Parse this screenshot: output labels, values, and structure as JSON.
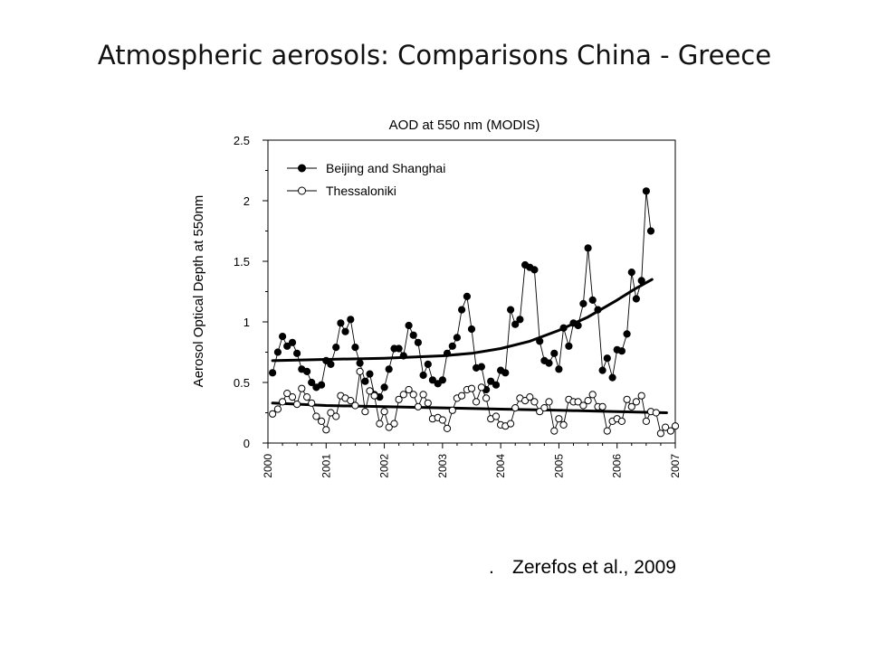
{
  "slide": {
    "title": "Atmospheric aerosols: Comparisons China - Greece",
    "citation_bullet": ".",
    "citation": "Zerefos et al., 2009"
  },
  "chart_data": {
    "type": "line",
    "title": "AOD at 550 nm (MODIS)",
    "xlabel": "",
    "ylabel": "Aerosol Optical Depth at 550nm",
    "xlim": [
      2000,
      2007
    ],
    "ylim": [
      0,
      2.5
    ],
    "x_ticks": [
      "2000",
      "2001",
      "2002",
      "2003",
      "2004",
      "2005",
      "2006",
      "2007"
    ],
    "y_ticks": [
      "0",
      "0.5",
      "1",
      "1.5",
      "2",
      "2.5"
    ],
    "grid": false,
    "legend": "top-left",
    "series": [
      {
        "name": "Beijing and Shanghai",
        "marker": "filled-circle",
        "color": "#000000",
        "x": [
          2000.08,
          2000.17,
          2000.25,
          2000.33,
          2000.42,
          2000.5,
          2000.58,
          2000.67,
          2000.75,
          2000.83,
          2000.92,
          2001.0,
          2001.08,
          2001.17,
          2001.25,
          2001.33,
          2001.42,
          2001.5,
          2001.58,
          2001.67,
          2001.75,
          2001.83,
          2001.92,
          2002.0,
          2002.08,
          2002.17,
          2002.25,
          2002.33,
          2002.42,
          2002.5,
          2002.58,
          2002.67,
          2002.75,
          2002.83,
          2002.92,
          2003.0,
          2003.08,
          2003.17,
          2003.25,
          2003.33,
          2003.42,
          2003.5,
          2003.58,
          2003.67,
          2003.75,
          2003.83,
          2003.92,
          2004.0,
          2004.08,
          2004.17,
          2004.25,
          2004.33,
          2004.42,
          2004.5,
          2004.58,
          2004.67,
          2004.75,
          2004.83,
          2004.92,
          2005.0,
          2005.08,
          2005.17,
          2005.25,
          2005.33,
          2005.42,
          2005.5,
          2005.58,
          2005.67,
          2005.75,
          2005.83,
          2005.92,
          2006.0,
          2006.08,
          2006.17,
          2006.25,
          2006.33,
          2006.42,
          2006.5,
          2006.58
        ],
        "values": [
          0.58,
          0.75,
          0.88,
          0.8,
          0.83,
          0.74,
          0.61,
          0.59,
          0.5,
          0.46,
          0.48,
          0.68,
          0.65,
          0.79,
          0.99,
          0.92,
          1.02,
          0.79,
          0.66,
          0.51,
          0.57,
          0.4,
          0.38,
          0.46,
          0.61,
          0.78,
          0.78,
          0.72,
          0.97,
          0.89,
          0.83,
          0.56,
          0.65,
          0.52,
          0.49,
          0.52,
          0.74,
          0.8,
          0.87,
          1.1,
          1.21,
          0.94,
          0.62,
          0.63,
          0.44,
          0.51,
          0.48,
          0.6,
          0.58,
          1.1,
          0.98,
          1.02,
          1.47,
          1.45,
          1.43,
          0.84,
          0.68,
          0.66,
          0.74,
          0.61,
          0.95,
          0.8,
          0.99,
          0.97,
          1.15,
          1.61,
          1.18,
          1.1,
          0.6,
          0.7,
          0.54,
          0.77,
          0.76,
          0.9,
          1.41,
          1.19,
          1.34,
          2.08,
          1.75
        ],
        "trend": {
          "x": [
            2000.08,
            2001.0,
            2002.0,
            2003.0,
            2003.5,
            2004.0,
            2004.5,
            2005.0,
            2005.5,
            2006.0,
            2006.3,
            2006.6
          ],
          "values": [
            0.68,
            0.69,
            0.7,
            0.72,
            0.74,
            0.78,
            0.84,
            0.93,
            1.04,
            1.18,
            1.27,
            1.35
          ]
        }
      },
      {
        "name": "Thessaloniki",
        "marker": "open-circle",
        "color": "#000000",
        "x": [
          2000.08,
          2000.17,
          2000.25,
          2000.33,
          2000.42,
          2000.5,
          2000.58,
          2000.67,
          2000.75,
          2000.83,
          2000.92,
          2001.0,
          2001.08,
          2001.17,
          2001.25,
          2001.33,
          2001.42,
          2001.5,
          2001.58,
          2001.67,
          2001.75,
          2001.83,
          2001.92,
          2002.0,
          2002.08,
          2002.17,
          2002.25,
          2002.33,
          2002.42,
          2002.5,
          2002.58,
          2002.67,
          2002.75,
          2002.83,
          2002.92,
          2003.0,
          2003.08,
          2003.17,
          2003.25,
          2003.33,
          2003.42,
          2003.5,
          2003.58,
          2003.67,
          2003.75,
          2003.83,
          2003.92,
          2004.0,
          2004.08,
          2004.17,
          2004.25,
          2004.33,
          2004.42,
          2004.5,
          2004.58,
          2004.67,
          2004.75,
          2004.83,
          2004.92,
          2005.0,
          2005.08,
          2005.17,
          2005.25,
          2005.33,
          2005.42,
          2005.5,
          2005.58,
          2005.67,
          2005.75,
          2005.83,
          2005.92,
          2006.0,
          2006.08,
          2006.17,
          2006.25,
          2006.33,
          2006.42,
          2006.5,
          2006.58,
          2006.67,
          2006.75,
          2006.83,
          2006.92,
          2007.0
        ],
        "values": [
          0.24,
          0.28,
          0.34,
          0.41,
          0.38,
          0.32,
          0.45,
          0.38,
          0.33,
          0.22,
          0.18,
          0.11,
          0.25,
          0.22,
          0.39,
          0.37,
          0.35,
          0.31,
          0.59,
          0.26,
          0.43,
          0.39,
          0.16,
          0.26,
          0.13,
          0.16,
          0.36,
          0.4,
          0.44,
          0.4,
          0.3,
          0.4,
          0.33,
          0.2,
          0.21,
          0.19,
          0.12,
          0.27,
          0.37,
          0.39,
          0.44,
          0.45,
          0.34,
          0.46,
          0.37,
          0.2,
          0.22,
          0.15,
          0.14,
          0.16,
          0.29,
          0.37,
          0.35,
          0.38,
          0.34,
          0.26,
          0.29,
          0.34,
          0.1,
          0.2,
          0.15,
          0.36,
          0.34,
          0.34,
          0.31,
          0.35,
          0.4,
          0.3,
          0.3,
          0.1,
          0.18,
          0.2,
          0.18,
          0.36,
          0.3,
          0.34,
          0.39,
          0.18,
          0.26,
          0.25,
          0.08,
          0.13,
          0.1,
          0.14
        ],
        "trend": {
          "x": [
            2000.08,
            2001.0,
            2002.0,
            2003.0,
            2004.0,
            2005.0,
            2006.0,
            2006.85
          ],
          "values": [
            0.33,
            0.31,
            0.3,
            0.29,
            0.28,
            0.27,
            0.26,
            0.25
          ]
        }
      }
    ]
  }
}
